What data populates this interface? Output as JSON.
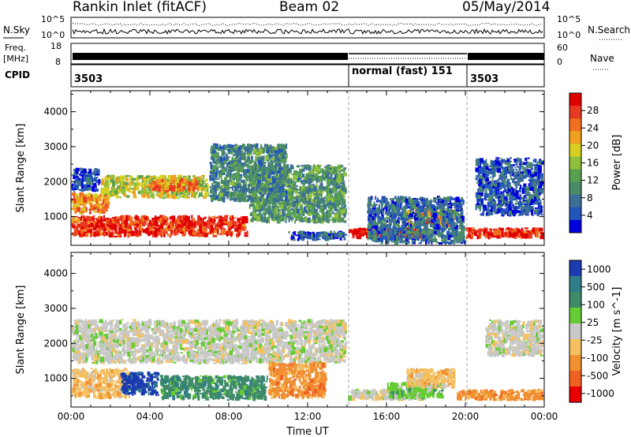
{
  "header": {
    "station": "Rankin Inlet (fitACF)",
    "beam": "Beam 02",
    "date": "05/May/2014"
  },
  "strips": {
    "nsky": {
      "label": "N.Sky",
      "ticks": [
        "10^5",
        "10^0"
      ],
      "right_label": "N.Search",
      "right_ticks": [
        "10^5",
        "10^0"
      ]
    },
    "freq": {
      "label": "Freq.",
      "unit": "[MHz]",
      "ticks": [
        "18",
        "8"
      ],
      "right_label": "Nave",
      "right_ticks": [
        "60",
        "0"
      ]
    },
    "cpid": {
      "label": "CPID",
      "segments": [
        {
          "start_h": 0,
          "end_h": 14,
          "text": "3503"
        },
        {
          "start_h": 14,
          "end_h": 20,
          "text": "normal (fast) 151"
        },
        {
          "start_h": 20,
          "end_h": 24,
          "text": "3503"
        }
      ]
    }
  },
  "chart_data": [
    {
      "type": "heatmap",
      "panel": "power",
      "ylabel": "Slant Range [km]",
      "ylim": [
        180,
        4600
      ],
      "y_ticks": [
        "1000",
        "2000",
        "3000",
        "4000"
      ],
      "xlim_hours": [
        0,
        24
      ],
      "x_ticks": [
        "00:00",
        "04:00",
        "08:00",
        "12:00",
        "16:00",
        "20:00",
        "00:00"
      ],
      "colorbar": {
        "label": "Power [dB]",
        "ticks": [
          "4",
          "8",
          "12",
          "16",
          "20",
          "24",
          "28"
        ],
        "colors": [
          "#0000dd",
          "#2255bb",
          "#3c6e96",
          "#4a8a6a",
          "#58a050",
          "#8ec03c",
          "#d8d020",
          "#f0a020",
          "#f07020",
          "#e83a20",
          "#e00000"
        ]
      },
      "regions": [
        {
          "t0": 0.0,
          "t1": 9.0,
          "r0": 400,
          "r1": 1050,
          "level": 0.88
        },
        {
          "t0": 0.0,
          "t1": 2.0,
          "r0": 1050,
          "r1": 1700,
          "level": 0.72
        },
        {
          "t0": 1.5,
          "t1": 7.0,
          "r0": 1500,
          "r1": 2200,
          "level": 0.55
        },
        {
          "t0": 4.0,
          "t1": 6.5,
          "r0": 1700,
          "r1": 2100,
          "level": 0.75
        },
        {
          "t0": 9.0,
          "t1": 14.0,
          "r0": 800,
          "r1": 2500,
          "level": 0.35
        },
        {
          "t0": 7.0,
          "t1": 11.0,
          "r0": 1400,
          "r1": 3100,
          "level": 0.3
        },
        {
          "t0": 11.0,
          "t1": 14.0,
          "r0": 300,
          "r1": 600,
          "level": 0.15
        },
        {
          "t0": 14.0,
          "t1": 18.0,
          "r0": 350,
          "r1": 700,
          "level": 0.95
        },
        {
          "t0": 17.0,
          "t1": 19.5,
          "r0": 700,
          "r1": 1300,
          "level": 0.75
        },
        {
          "t0": 15.0,
          "t1": 20.0,
          "r0": 200,
          "r1": 1600,
          "level": 0.22
        },
        {
          "t0": 20.0,
          "t1": 24.0,
          "r0": 350,
          "r1": 700,
          "level": 0.9
        },
        {
          "t0": 20.5,
          "t1": 24.0,
          "r0": 1000,
          "r1": 2700,
          "level": 0.18
        },
        {
          "t0": 0.0,
          "t1": 1.5,
          "r0": 1700,
          "r1": 2400,
          "level": 0.15
        }
      ]
    },
    {
      "type": "heatmap",
      "panel": "velocity",
      "ylabel": "Slant Range [km]",
      "ylim": [
        180,
        4600
      ],
      "y_ticks": [
        "1000",
        "2000",
        "3000",
        "4000"
      ],
      "xlim_hours": [
        0,
        24
      ],
      "x_ticks": [
        "00:00",
        "04:00",
        "08:00",
        "12:00",
        "16:00",
        "20:00",
        "00:00"
      ],
      "xlabel": "Time UT",
      "colorbar": {
        "label": "Velocity [m s^-1]",
        "ticks": [
          "1000",
          "500",
          "100",
          "25",
          "-25",
          "-100",
          "-500",
          "-1000"
        ],
        "colors": [
          "#1a3cb0",
          "#2f7d8a",
          "#3e8a68",
          "#66cc33",
          "#c8c8c8",
          "#f5c060",
          "#f09030",
          "#f06020",
          "#e80000"
        ]
      },
      "regions": [
        {
          "t0": 0.0,
          "t1": 14.0,
          "r0": 1400,
          "r1": 2700,
          "vel": "-25"
        },
        {
          "t0": 0.0,
          "t1": 3.0,
          "r0": 400,
          "r1": 1300,
          "vel": "-100"
        },
        {
          "t0": 2.5,
          "t1": 4.5,
          "r0": 500,
          "r1": 1200,
          "vel": "1000"
        },
        {
          "t0": 4.5,
          "t1": 10.0,
          "r0": 350,
          "r1": 1100,
          "vel": "100"
        },
        {
          "t0": 10.0,
          "t1": 13.0,
          "r0": 400,
          "r1": 1500,
          "vel": "-500"
        },
        {
          "t0": 14.0,
          "t1": 18.0,
          "r0": 350,
          "r1": 700,
          "vel": "-25"
        },
        {
          "t0": 16.0,
          "t1": 19.0,
          "r0": 400,
          "r1": 900,
          "vel": "25"
        },
        {
          "t0": 17.0,
          "t1": 19.5,
          "r0": 700,
          "r1": 1300,
          "vel": "-100"
        },
        {
          "t0": 19.5,
          "t1": 24.0,
          "r0": 350,
          "r1": 700,
          "vel": "-500"
        },
        {
          "t0": 21.0,
          "t1": 24.0,
          "r0": 1600,
          "r1": 2700,
          "vel": "-25"
        },
        {
          "t0": 12.5,
          "t1": 14.0,
          "r0": 2200,
          "r1": 2700,
          "vel": "-25"
        }
      ]
    }
  ]
}
